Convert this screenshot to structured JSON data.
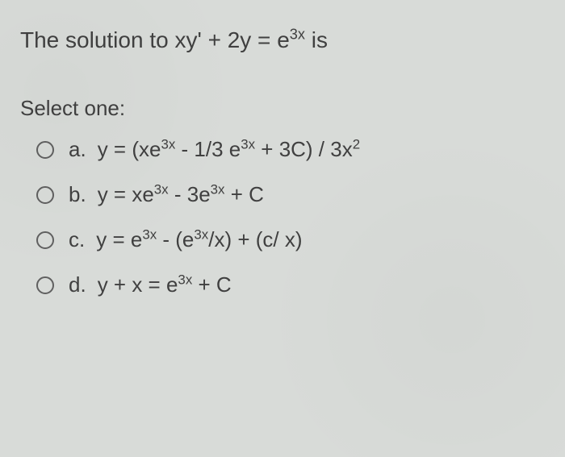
{
  "question": {
    "stem_prefix": "The solution to ",
    "equation": "xy' + 2y = e",
    "exponent": "3x",
    "stem_suffix": "  is"
  },
  "select_label": "Select one:",
  "options": {
    "a": {
      "letter": "a.",
      "prefix": "y = (xe",
      "exp1": "3x",
      "mid1": " - 1/3 e",
      "exp2": "3x",
      "mid2": " + 3C) / 3x",
      "exp3": "2"
    },
    "b": {
      "letter": "b.",
      "prefix": "y = xe",
      "exp1": "3x",
      "mid1": " - 3e",
      "exp2": "3x",
      "suffix": " + C"
    },
    "c": {
      "letter": "c.",
      "prefix": "y = e",
      "exp1": "3x",
      "mid1": " - (e",
      "exp2": "3x",
      "suffix": "/x) + (c/ x)"
    },
    "d": {
      "letter": "d.",
      "prefix": "y + x = e",
      "exp1": "3x",
      "suffix": " + C"
    }
  },
  "colors": {
    "background": "#d8dbd8",
    "text": "#404040",
    "radio_border": "#606060"
  }
}
